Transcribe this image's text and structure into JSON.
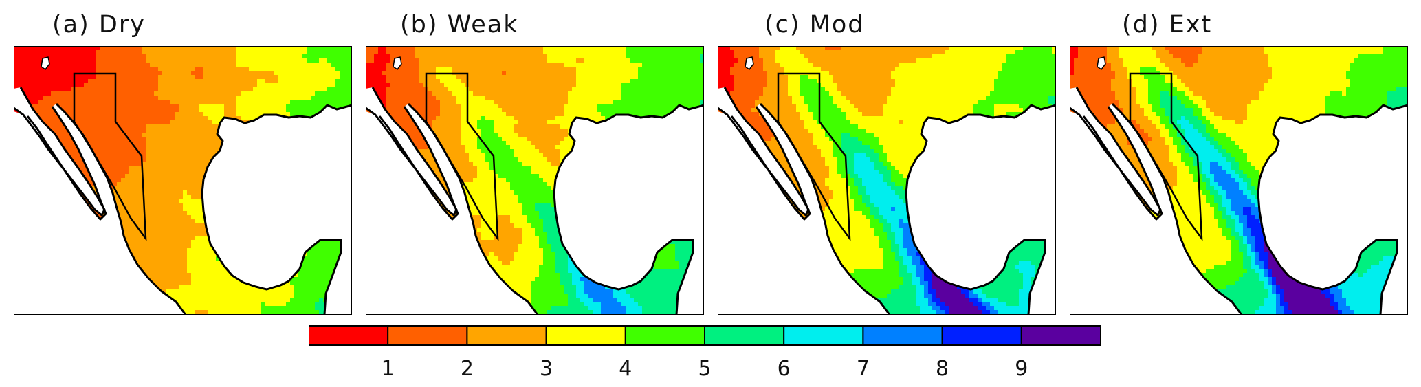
{
  "panels": [
    {
      "label": "(a) Dry",
      "wet_level": 0
    },
    {
      "label": "(b) Weak",
      "wet_level": 1
    },
    {
      "label": "(c) Mod",
      "wet_level": 2
    },
    {
      "label": "(d) Ext",
      "wet_level": 3
    }
  ],
  "colorbar": {
    "colors": [
      "#ff0000",
      "#ff6000",
      "#ffa500",
      "#ffff00",
      "#40ff00",
      "#00f080",
      "#00eeee",
      "#0080ff",
      "#0020ff",
      "#5a009f"
    ],
    "ticks": [
      "1",
      "2",
      "3",
      "4",
      "5",
      "6",
      "7",
      "8",
      "9"
    ]
  },
  "colors": {
    "ocean": "#ffffff",
    "coast": "#000000",
    "box": "#000000"
  }
}
